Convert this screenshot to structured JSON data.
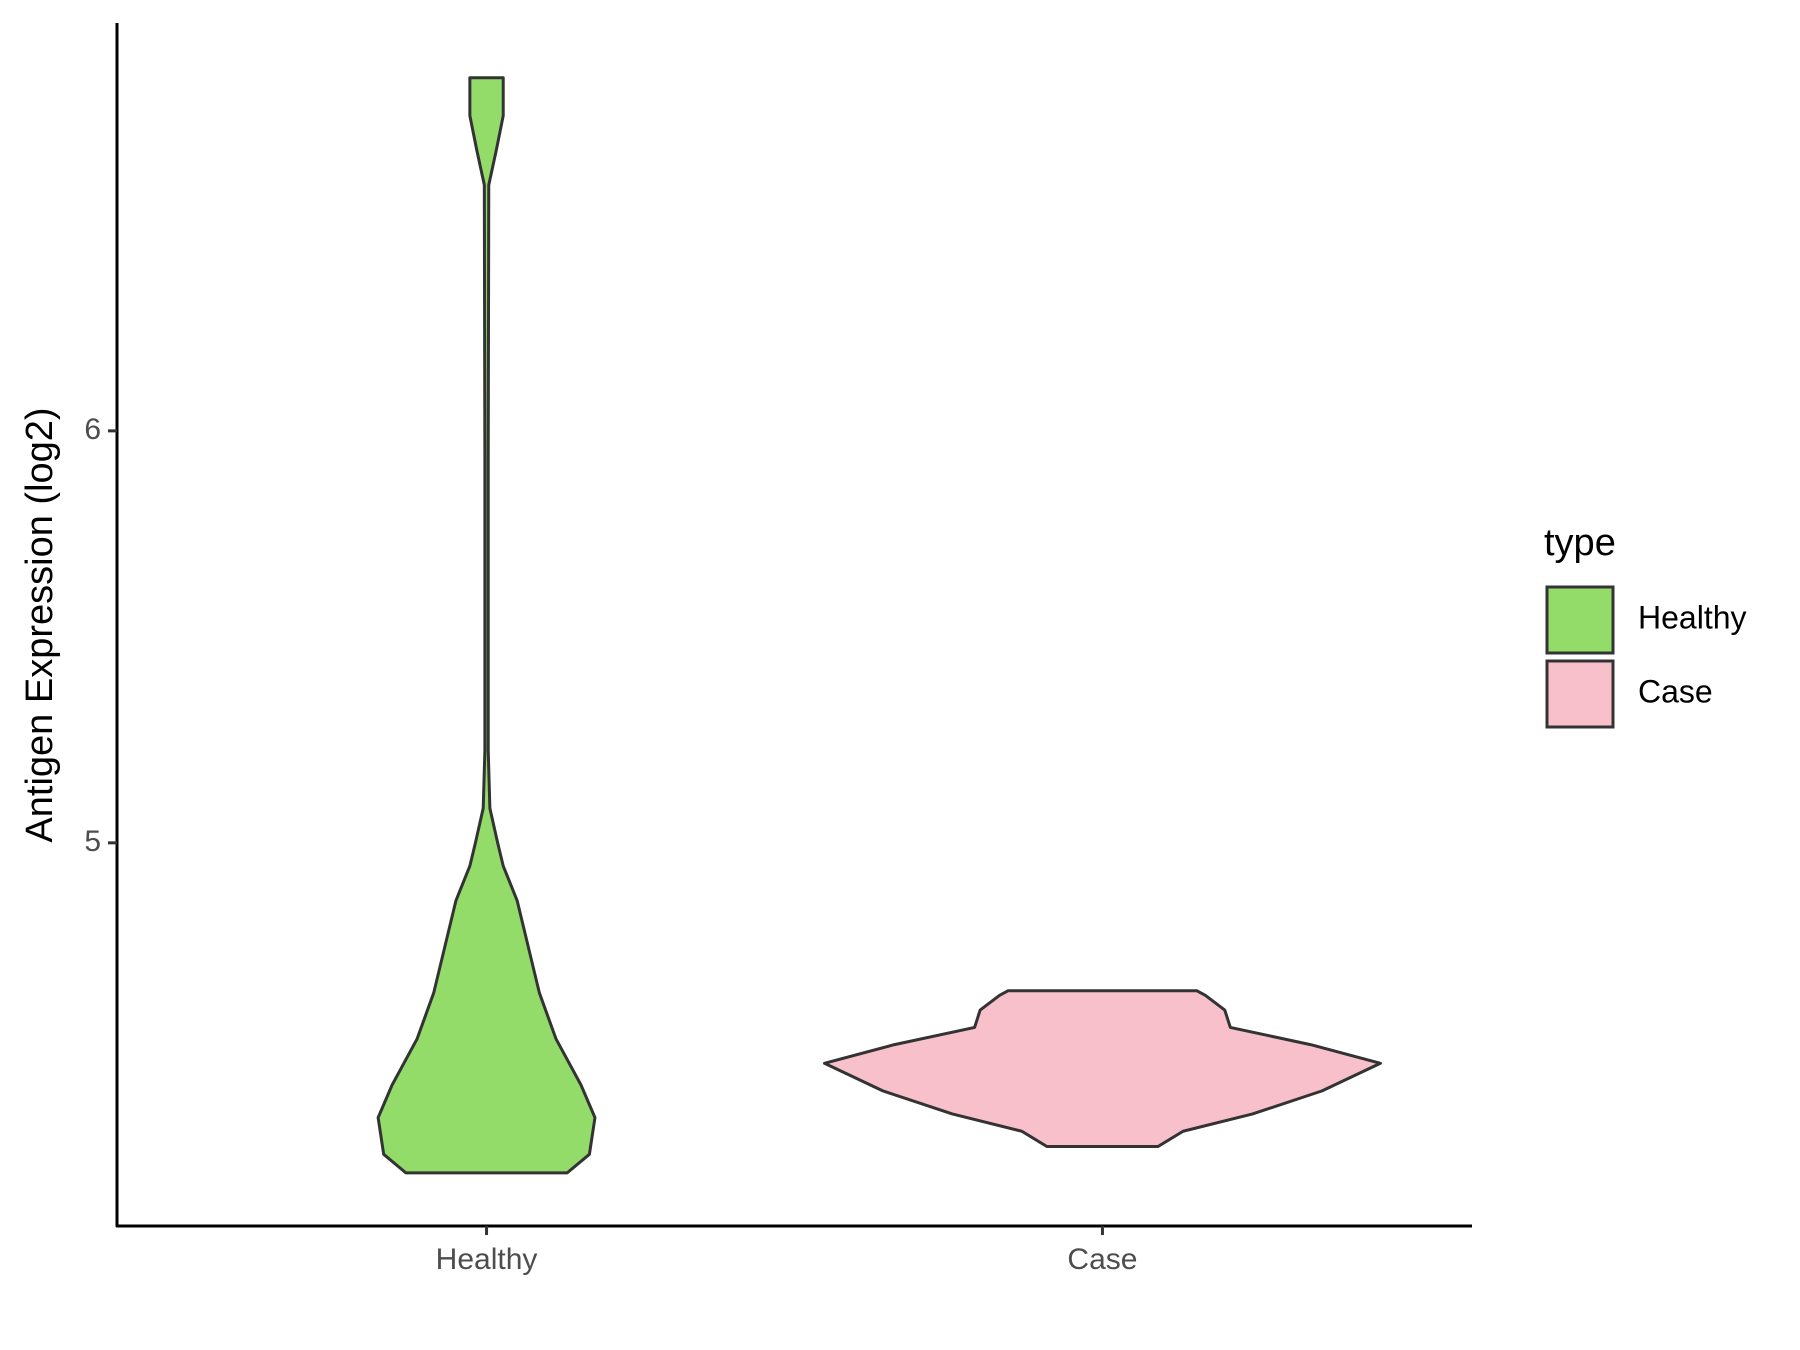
{
  "chart_data": {
    "type": "violin",
    "y_label": "Antigen Expression (log2)",
    "categories": [
      "Healthy",
      "Case"
    ],
    "legend_title": "type",
    "legend": "right",
    "grid": false,
    "ylim": [
      4.07,
      6.99
    ],
    "yticks": [
      5,
      6
    ],
    "series": [
      {
        "name": "Healthy",
        "color": "#93dc6a",
        "y": [
          4.199,
          4.244,
          4.333,
          4.412,
          4.524,
          4.636,
          4.748,
          4.86,
          4.944,
          5.0,
          5.084,
          5.224,
          5.924,
          6.597,
          6.681,
          6.765,
          6.857
        ],
        "density": [
          0.29,
          0.37,
          0.39,
          0.34,
          0.25,
          0.19,
          0.15,
          0.11,
          0.06,
          0.04,
          0.012,
          0.006,
          0.006,
          0.008,
          0.035,
          0.06,
          0.06
        ]
      },
      {
        "name": "Case",
        "color": "#f7c0cb",
        "y": [
          4.263,
          4.3,
          4.342,
          4.398,
          4.465,
          4.51,
          4.552,
          4.594,
          4.63,
          4.641
        ],
        "density": [
          0.2,
          0.29,
          0.54,
          0.79,
          1.0,
          0.75,
          0.46,
          0.44,
          0.37,
          0.34
        ]
      }
    ]
  }
}
